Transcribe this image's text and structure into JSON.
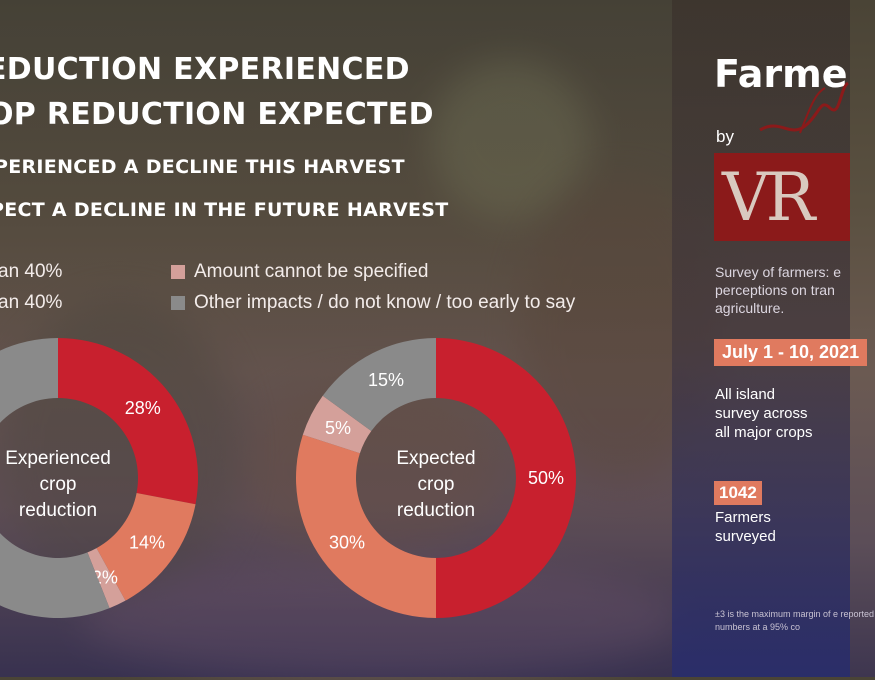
{
  "headings": {
    "line1": "EDUCTION EXPERIENCED",
    "line2": "OP REDUCTION EXPECTED",
    "sub1": "PERIENCED A DECLINE THIS HARVEST",
    "sub2": "PECT A DECLINE IN THE FUTURE HARVEST"
  },
  "legend": [
    {
      "label": "an 40%",
      "color": "#c8202e"
    },
    {
      "label": "an 40%",
      "color": "#e07a5f"
    },
    {
      "label": "Amount cannot be specified",
      "color": "#d4a09a"
    },
    {
      "label": "Other impacts / do not know / too early to say",
      "color": "#8a8a8a"
    }
  ],
  "chart_data": [
    {
      "type": "pie",
      "title": "Experienced crop reduction",
      "center_lines": [
        "Experienced",
        "crop",
        "reduction"
      ],
      "series": [
        {
          "name": "an 40%",
          "value": 28,
          "label": "28%",
          "color": "#c8202e"
        },
        {
          "name": "an 40%",
          "value": 14,
          "label": "14%",
          "color": "#e07a5f"
        },
        {
          "name": "Amount cannot be specified",
          "value": 2,
          "label": "2%",
          "color": "#d4a09a"
        },
        {
          "name": "Other impacts / do not know / too early to say",
          "value": 56,
          "label": "",
          "color": "#8a8a8a"
        }
      ]
    },
    {
      "type": "pie",
      "title": "Expected crop reduction",
      "center_lines": [
        "Expected",
        "crop",
        "reduction"
      ],
      "series": [
        {
          "name": "an 40%",
          "value": 50,
          "label": "50%",
          "color": "#c8202e"
        },
        {
          "name": "an 40%",
          "value": 30,
          "label": "30%",
          "color": "#e07a5f"
        },
        {
          "name": "Amount cannot be specified",
          "value": 5,
          "label": "5%",
          "color": "#d4a09a"
        },
        {
          "name": "Other impacts / do not know / too early to say",
          "value": 15,
          "label": "15%",
          "color": "#8a8a8a"
        }
      ]
    }
  ],
  "panel": {
    "title": "Farme",
    "by": "by",
    "logo_text": "VR",
    "survey_desc": "Survey of farmers: e perceptions on tran agriculture.",
    "date": "July 1 - 10, 2021",
    "scope": "All island survey across all major crops",
    "count": "1042",
    "count_label": "Farmers surveyed",
    "footnote": "±3 is the maximum margin of e reported numbers at a 95% co"
  }
}
